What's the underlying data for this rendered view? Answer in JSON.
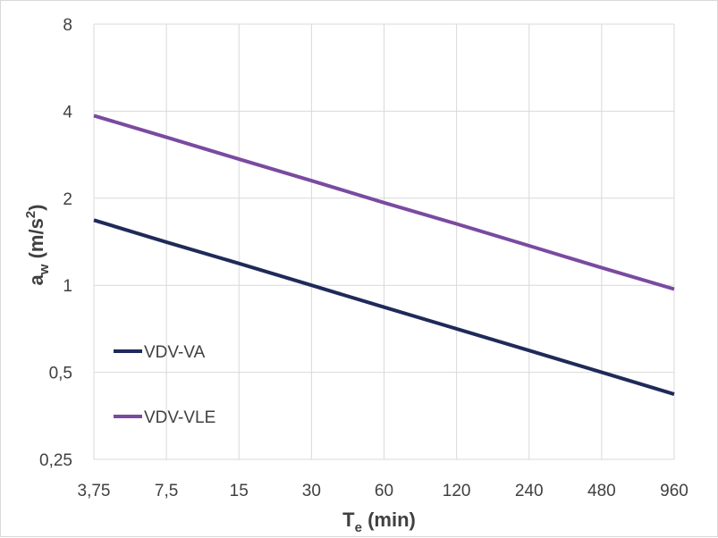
{
  "chart_data": {
    "type": "line",
    "x_scale": "log2",
    "y_scale": "log2",
    "x": [
      3.75,
      7.5,
      15,
      30,
      60,
      120,
      240,
      480,
      960
    ],
    "x_tick_labels": [
      "3,75",
      "7,5",
      "15",
      "30",
      "60",
      "120",
      "240",
      "480",
      "960"
    ],
    "y_ticks": [
      0.25,
      0.5,
      1,
      2,
      4,
      8
    ],
    "y_tick_labels": [
      "0,25",
      "0,5",
      "1",
      "2",
      "4",
      "8"
    ],
    "xlim": [
      3.75,
      960
    ],
    "ylim": [
      0.25,
      8
    ],
    "xlabel": {
      "main": "T",
      "sub": "e",
      "rest": " (min)"
    },
    "ylabel": {
      "main": "a",
      "sub": "w",
      "rest1": " (m/s",
      "sup": "2",
      "rest2": ")"
    },
    "grid": true,
    "legend_position": "left",
    "series": [
      {
        "name": "VDV-VA",
        "color": "#1f2a5a",
        "values": [
          1.68,
          1.41,
          1.19,
          1.0,
          0.84,
          0.707,
          0.595,
          0.5,
          0.42
        ]
      },
      {
        "name": "VDV-VLE",
        "color": "#7a4aa0",
        "values": [
          3.86,
          3.25,
          2.73,
          2.3,
          1.93,
          1.63,
          1.37,
          1.15,
          0.97
        ]
      }
    ]
  }
}
